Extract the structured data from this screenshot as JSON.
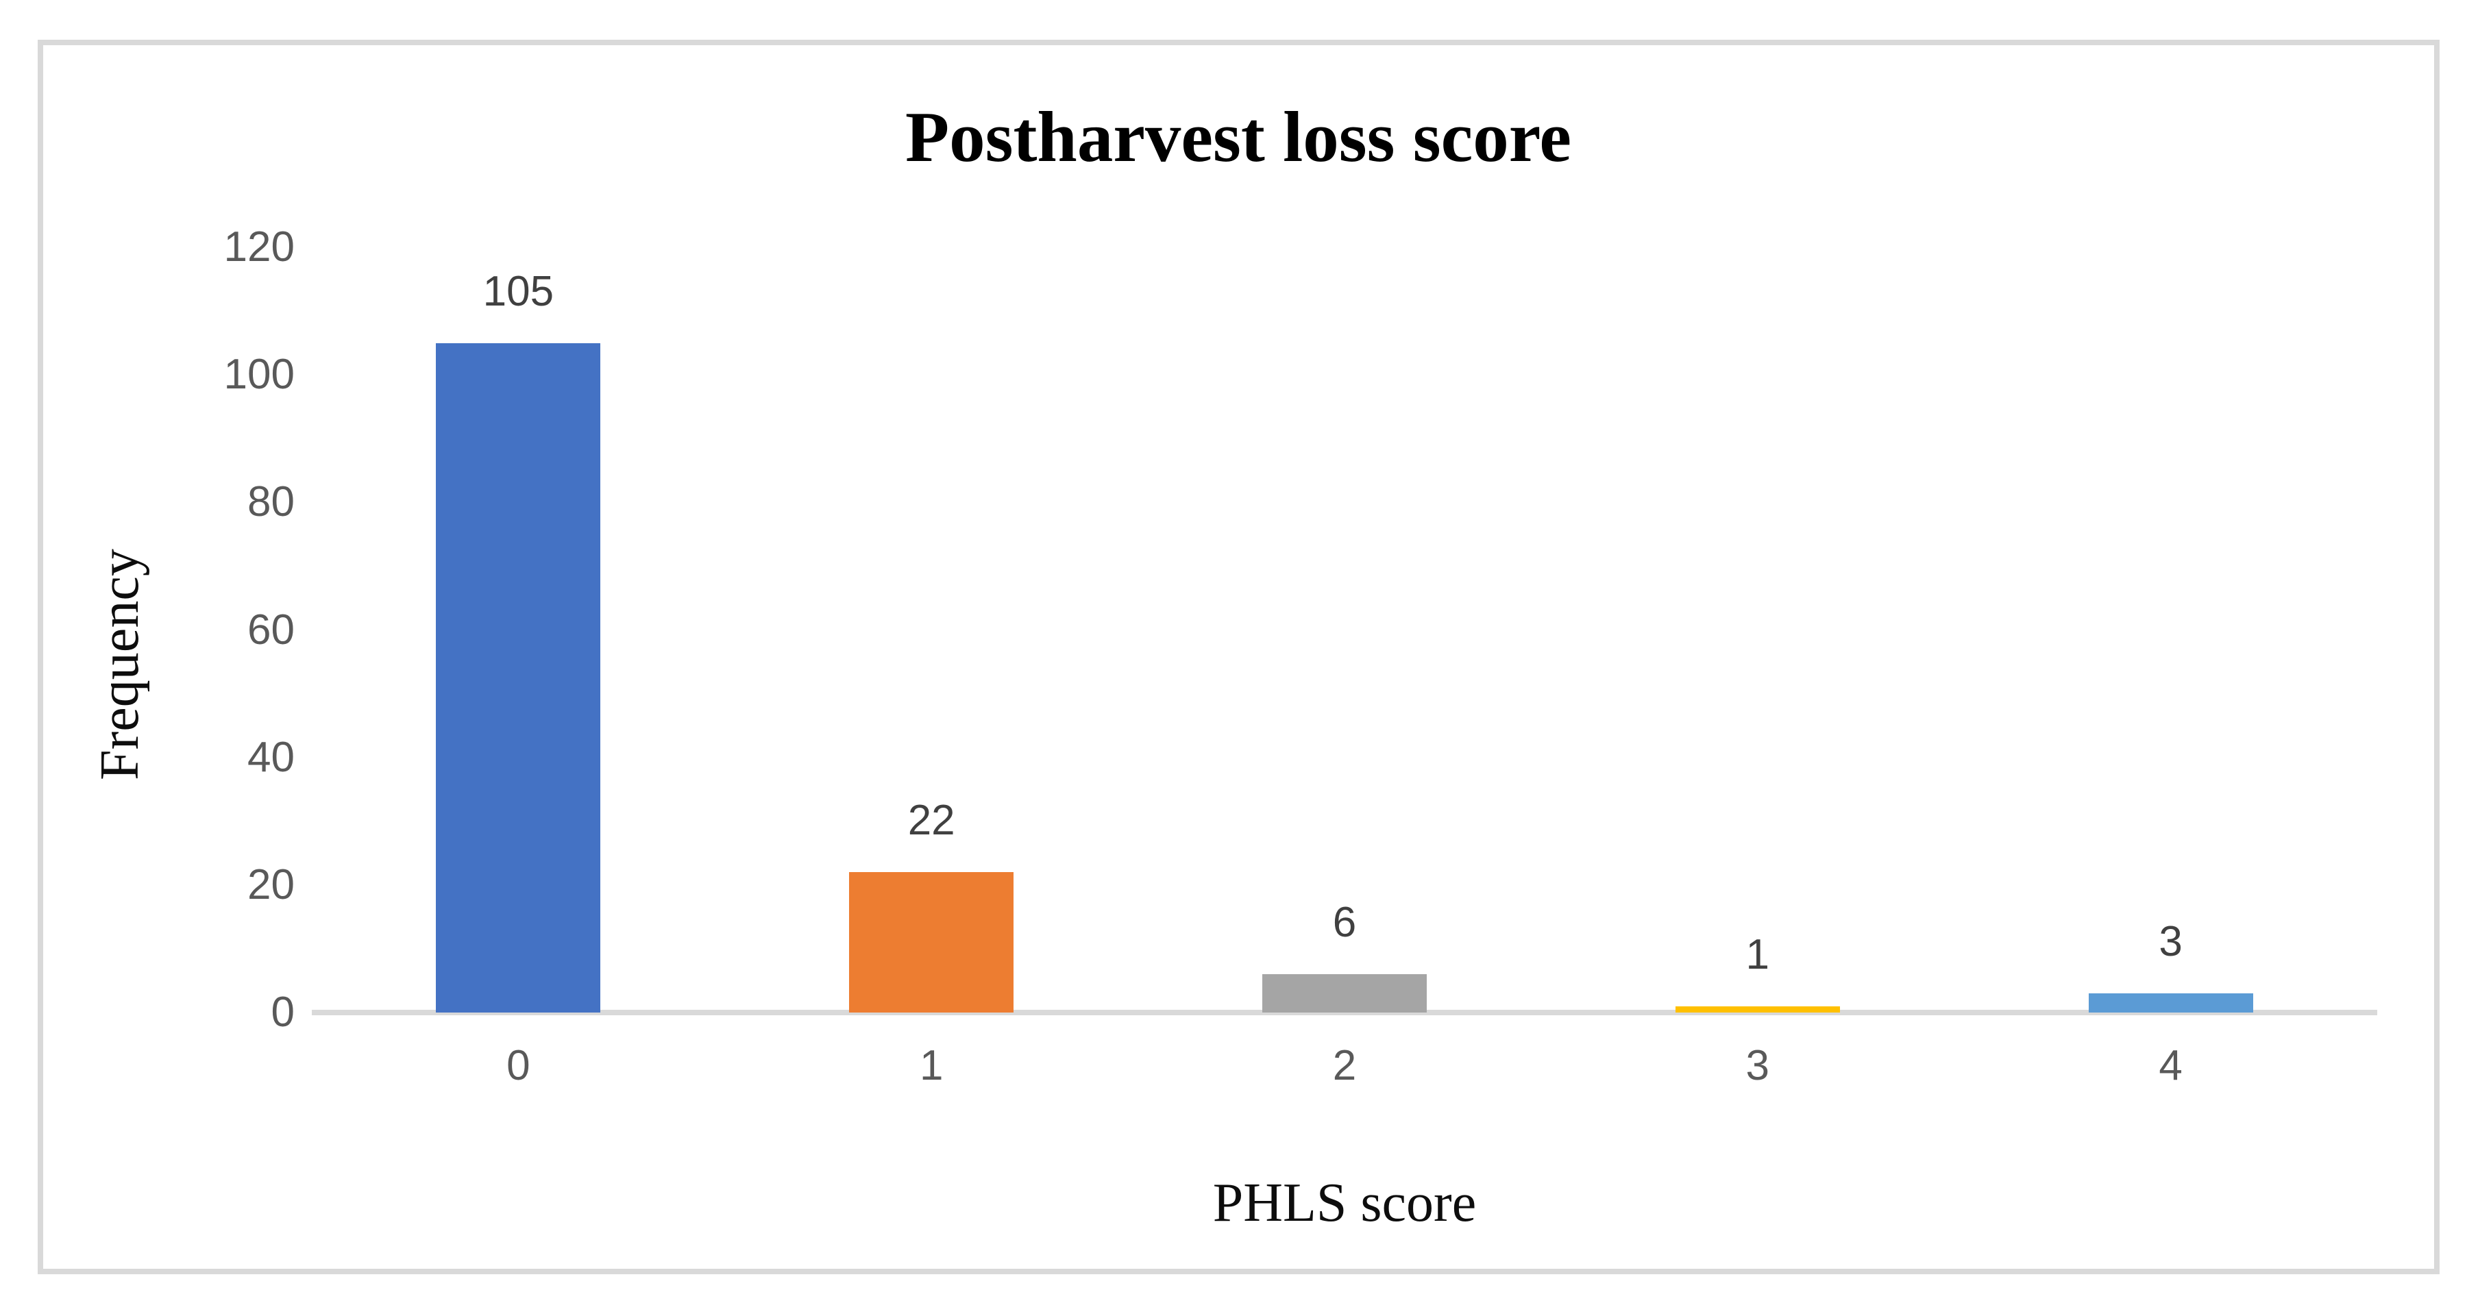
{
  "chart_data": {
    "type": "bar",
    "title": "Postharvest loss score",
    "xlabel": "PHLS score",
    "ylabel": "Frequency",
    "categories": [
      "0",
      "1",
      "2",
      "3",
      "4"
    ],
    "values": [
      105,
      22,
      6,
      1,
      3
    ],
    "data_labels": [
      "105",
      "22",
      "6",
      "1",
      "3"
    ],
    "series": [
      {
        "name": "Frequency",
        "values": [
          105,
          22,
          6,
          1,
          3
        ]
      }
    ],
    "bar_colors": [
      "#4472C4",
      "#ED7D31",
      "#A5A5A5",
      "#FFC000",
      "#5B9BD5"
    ],
    "ylim": [
      0,
      120
    ],
    "yticks": [
      0,
      20,
      40,
      60,
      80,
      100,
      120
    ],
    "grid": false,
    "legend": false,
    "colors": {
      "axis_line": "#D9D9D9",
      "frame_border": "#D9D9D9",
      "tick_label": "#595959",
      "data_label": "#404040",
      "title": "#000000"
    }
  }
}
